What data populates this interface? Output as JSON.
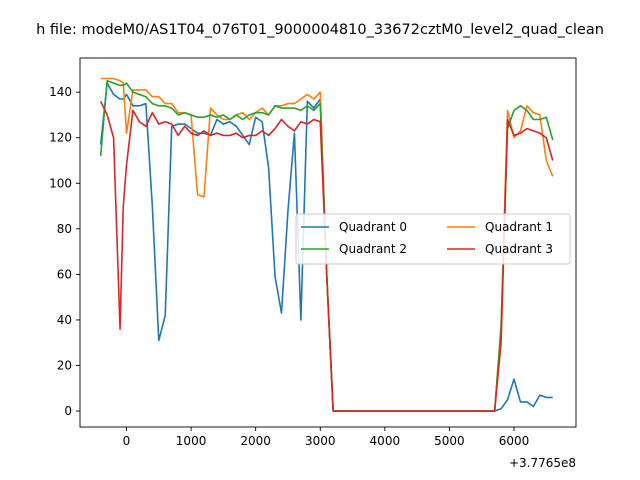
{
  "chart_data": {
    "type": "line",
    "title": "h file: modeM0/AS1T04_076T01_9000004810_33672cztM0_level2_quad_clean",
    "xlabel": "",
    "ylabel": "",
    "x_offset_label": "+3.7765e8",
    "xlim": [
      -720,
      6960
    ],
    "ylim": [
      -7,
      155
    ],
    "x_ticks": [
      0,
      1000,
      2000,
      3000,
      4000,
      5000,
      6000
    ],
    "x_tick_labels": [
      "0",
      "1000",
      "2000",
      "3000",
      "4000",
      "5000",
      "6000"
    ],
    "y_ticks": [
      0,
      20,
      40,
      60,
      80,
      100,
      120,
      140
    ],
    "y_tick_labels": [
      "0",
      "20",
      "40",
      "60",
      "80",
      "100",
      "120",
      "140"
    ],
    "grid": false,
    "legend_placement": "center-right",
    "x": [
      -400,
      -300,
      -200,
      -100,
      -50,
      0,
      100,
      200,
      300,
      400,
      500,
      600,
      700,
      800,
      900,
      1000,
      1100,
      1200,
      1300,
      1400,
      1500,
      1600,
      1700,
      1800,
      1900,
      2000,
      2100,
      2200,
      2300,
      2400,
      2500,
      2600,
      2700,
      2800,
      2900,
      3000,
      3100,
      3200,
      3300,
      3400,
      5700,
      5800,
      5900,
      6000,
      6100,
      6200,
      6300,
      6400,
      6500,
      6600
    ],
    "series": [
      {
        "name": "Quadrant 0",
        "color": "#1f77b4",
        "values": [
          117,
          144,
          139,
          137,
          137,
          139,
          134,
          134,
          135,
          90,
          31,
          42,
          125,
          126,
          126,
          124,
          122,
          122,
          121,
          128,
          126,
          127,
          125,
          121,
          117,
          129,
          127,
          107,
          59,
          43,
          88,
          122,
          40,
          136,
          133,
          137,
          60,
          0,
          0,
          0,
          0,
          1,
          5,
          14,
          4,
          4,
          2,
          7,
          6,
          6
        ]
      },
      {
        "name": "Quadrant 1",
        "color": "#ff7f0e",
        "values": [
          146,
          146,
          146,
          145,
          144,
          122,
          141,
          141,
          141,
          138,
          138,
          135,
          135,
          131,
          131,
          130,
          95,
          94,
          133,
          130,
          128,
          128,
          130,
          131,
          128,
          131,
          133,
          130,
          134,
          134,
          135,
          135,
          137,
          139,
          137,
          140,
          60,
          0,
          0,
          0,
          0,
          38,
          132,
          120,
          123,
          134,
          131,
          130,
          110,
          103
        ]
      },
      {
        "name": "Quadrant 2",
        "color": "#2ca02c",
        "values": [
          112,
          145,
          144,
          143,
          143,
          144,
          140,
          139,
          138,
          135,
          134,
          134,
          133,
          130,
          131,
          130,
          129,
          129,
          130,
          129,
          130,
          128,
          130,
          128,
          130,
          131,
          131,
          130,
          134,
          133,
          133,
          133,
          132,
          134,
          132,
          135,
          60,
          0,
          0,
          0,
          0,
          36,
          124,
          132,
          134,
          132,
          128,
          128,
          129,
          119
        ]
      },
      {
        "name": "Quadrant 3",
        "color": "#d62728",
        "values": [
          136,
          130,
          120,
          36,
          90,
          108,
          132,
          127,
          125,
          131,
          126,
          127,
          126,
          121,
          125,
          122,
          121,
          123,
          121,
          122,
          121,
          121,
          122,
          120,
          121,
          121,
          123,
          121,
          124,
          128,
          125,
          123,
          127,
          126,
          128,
          127,
          60,
          0,
          0,
          0,
          0,
          30,
          128,
          121,
          122,
          124,
          123,
          122,
          120,
          110
        ]
      }
    ]
  }
}
